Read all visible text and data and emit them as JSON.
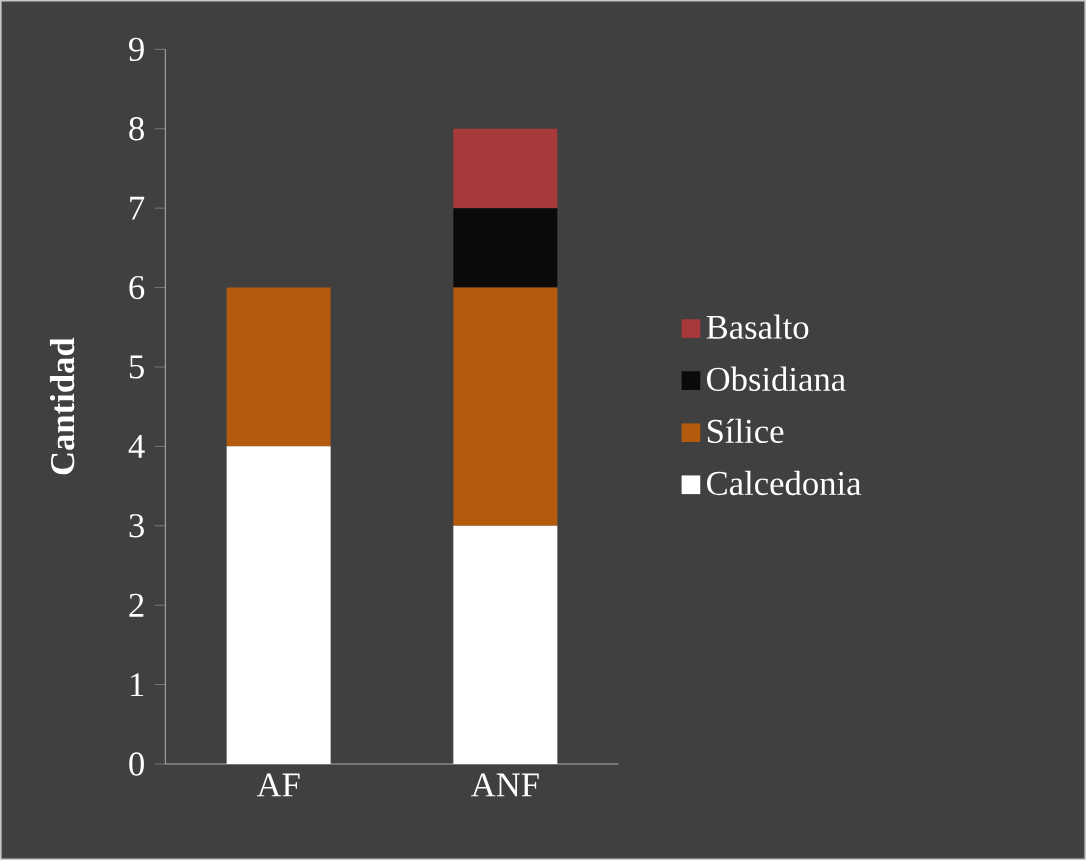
{
  "chart_data": {
    "type": "bar",
    "stacked": true,
    "ylabel": "Cantidad",
    "categories": [
      "AF",
      "ANF"
    ],
    "series": [
      {
        "name": "Calcedonia",
        "color": "#ffffff",
        "values": [
          4,
          3
        ]
      },
      {
        "name": "Sílice",
        "color": "#b35a0c",
        "values": [
          2,
          3
        ]
      },
      {
        "name": "Obsidiana",
        "color": "#0a0a0a",
        "values": [
          0,
          1
        ]
      },
      {
        "name": "Basalto",
        "color": "#a8393b",
        "values": [
          0,
          1
        ]
      }
    ],
    "ylim": [
      0,
      9
    ],
    "yticks": [
      0,
      1,
      2,
      3,
      4,
      5,
      6,
      7,
      8,
      9
    ],
    "legend": "right"
  }
}
